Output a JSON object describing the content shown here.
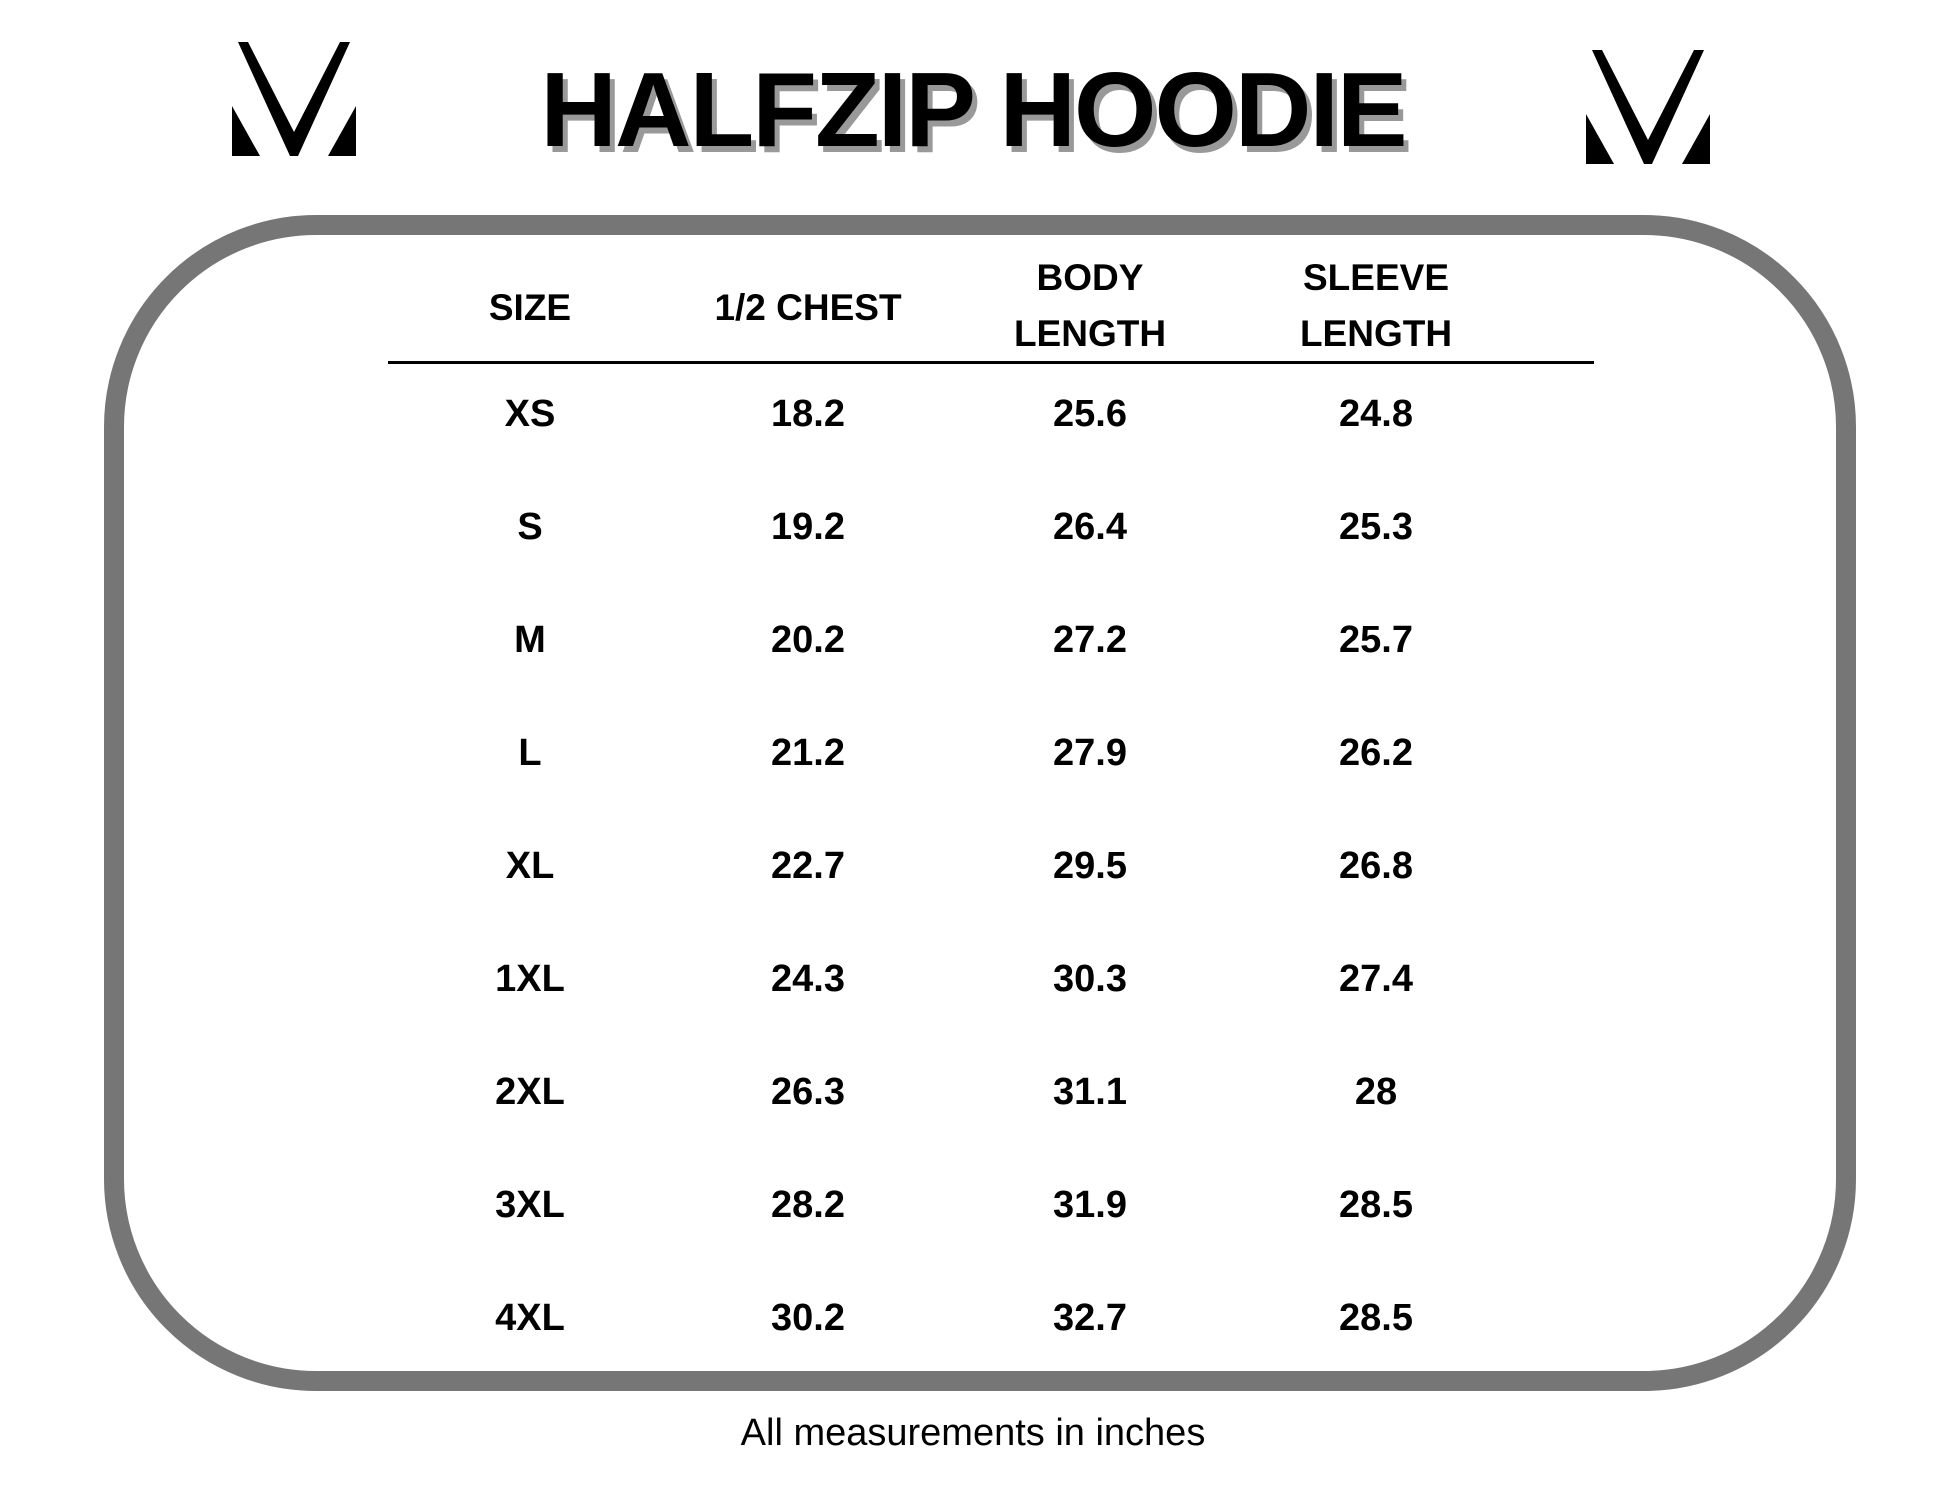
{
  "title": "HALFZIP HOODIE",
  "logo_icon": "stylized-v-monogram",
  "colors": {
    "frame": "#767676",
    "title_shadow": "#999999",
    "text": "#000000"
  },
  "table": {
    "headers": [
      {
        "line1": "SIZE",
        "line2": ""
      },
      {
        "line1": "1/2 CHEST",
        "line2": ""
      },
      {
        "line1": "BODY",
        "line2": "LENGTH"
      },
      {
        "line1": "SLEEVE",
        "line2": "LENGTH"
      }
    ],
    "rows": [
      [
        "XS",
        "18.2",
        "25.6",
        "24.8"
      ],
      [
        "S",
        "19.2",
        "26.4",
        "25.3"
      ],
      [
        "M",
        "20.2",
        "27.2",
        "25.7"
      ],
      [
        "L",
        "21.2",
        "27.9",
        "26.2"
      ],
      [
        "XL",
        "22.7",
        "29.5",
        "26.8"
      ],
      [
        "1XL",
        "24.3",
        "30.3",
        "27.4"
      ],
      [
        "2XL",
        "26.3",
        "31.1",
        "28"
      ],
      [
        "3XL",
        "28.2",
        "31.9",
        "28.5"
      ],
      [
        "4XL",
        "30.2",
        "32.7",
        "28.5"
      ]
    ]
  },
  "footer": "All measurements in inches"
}
